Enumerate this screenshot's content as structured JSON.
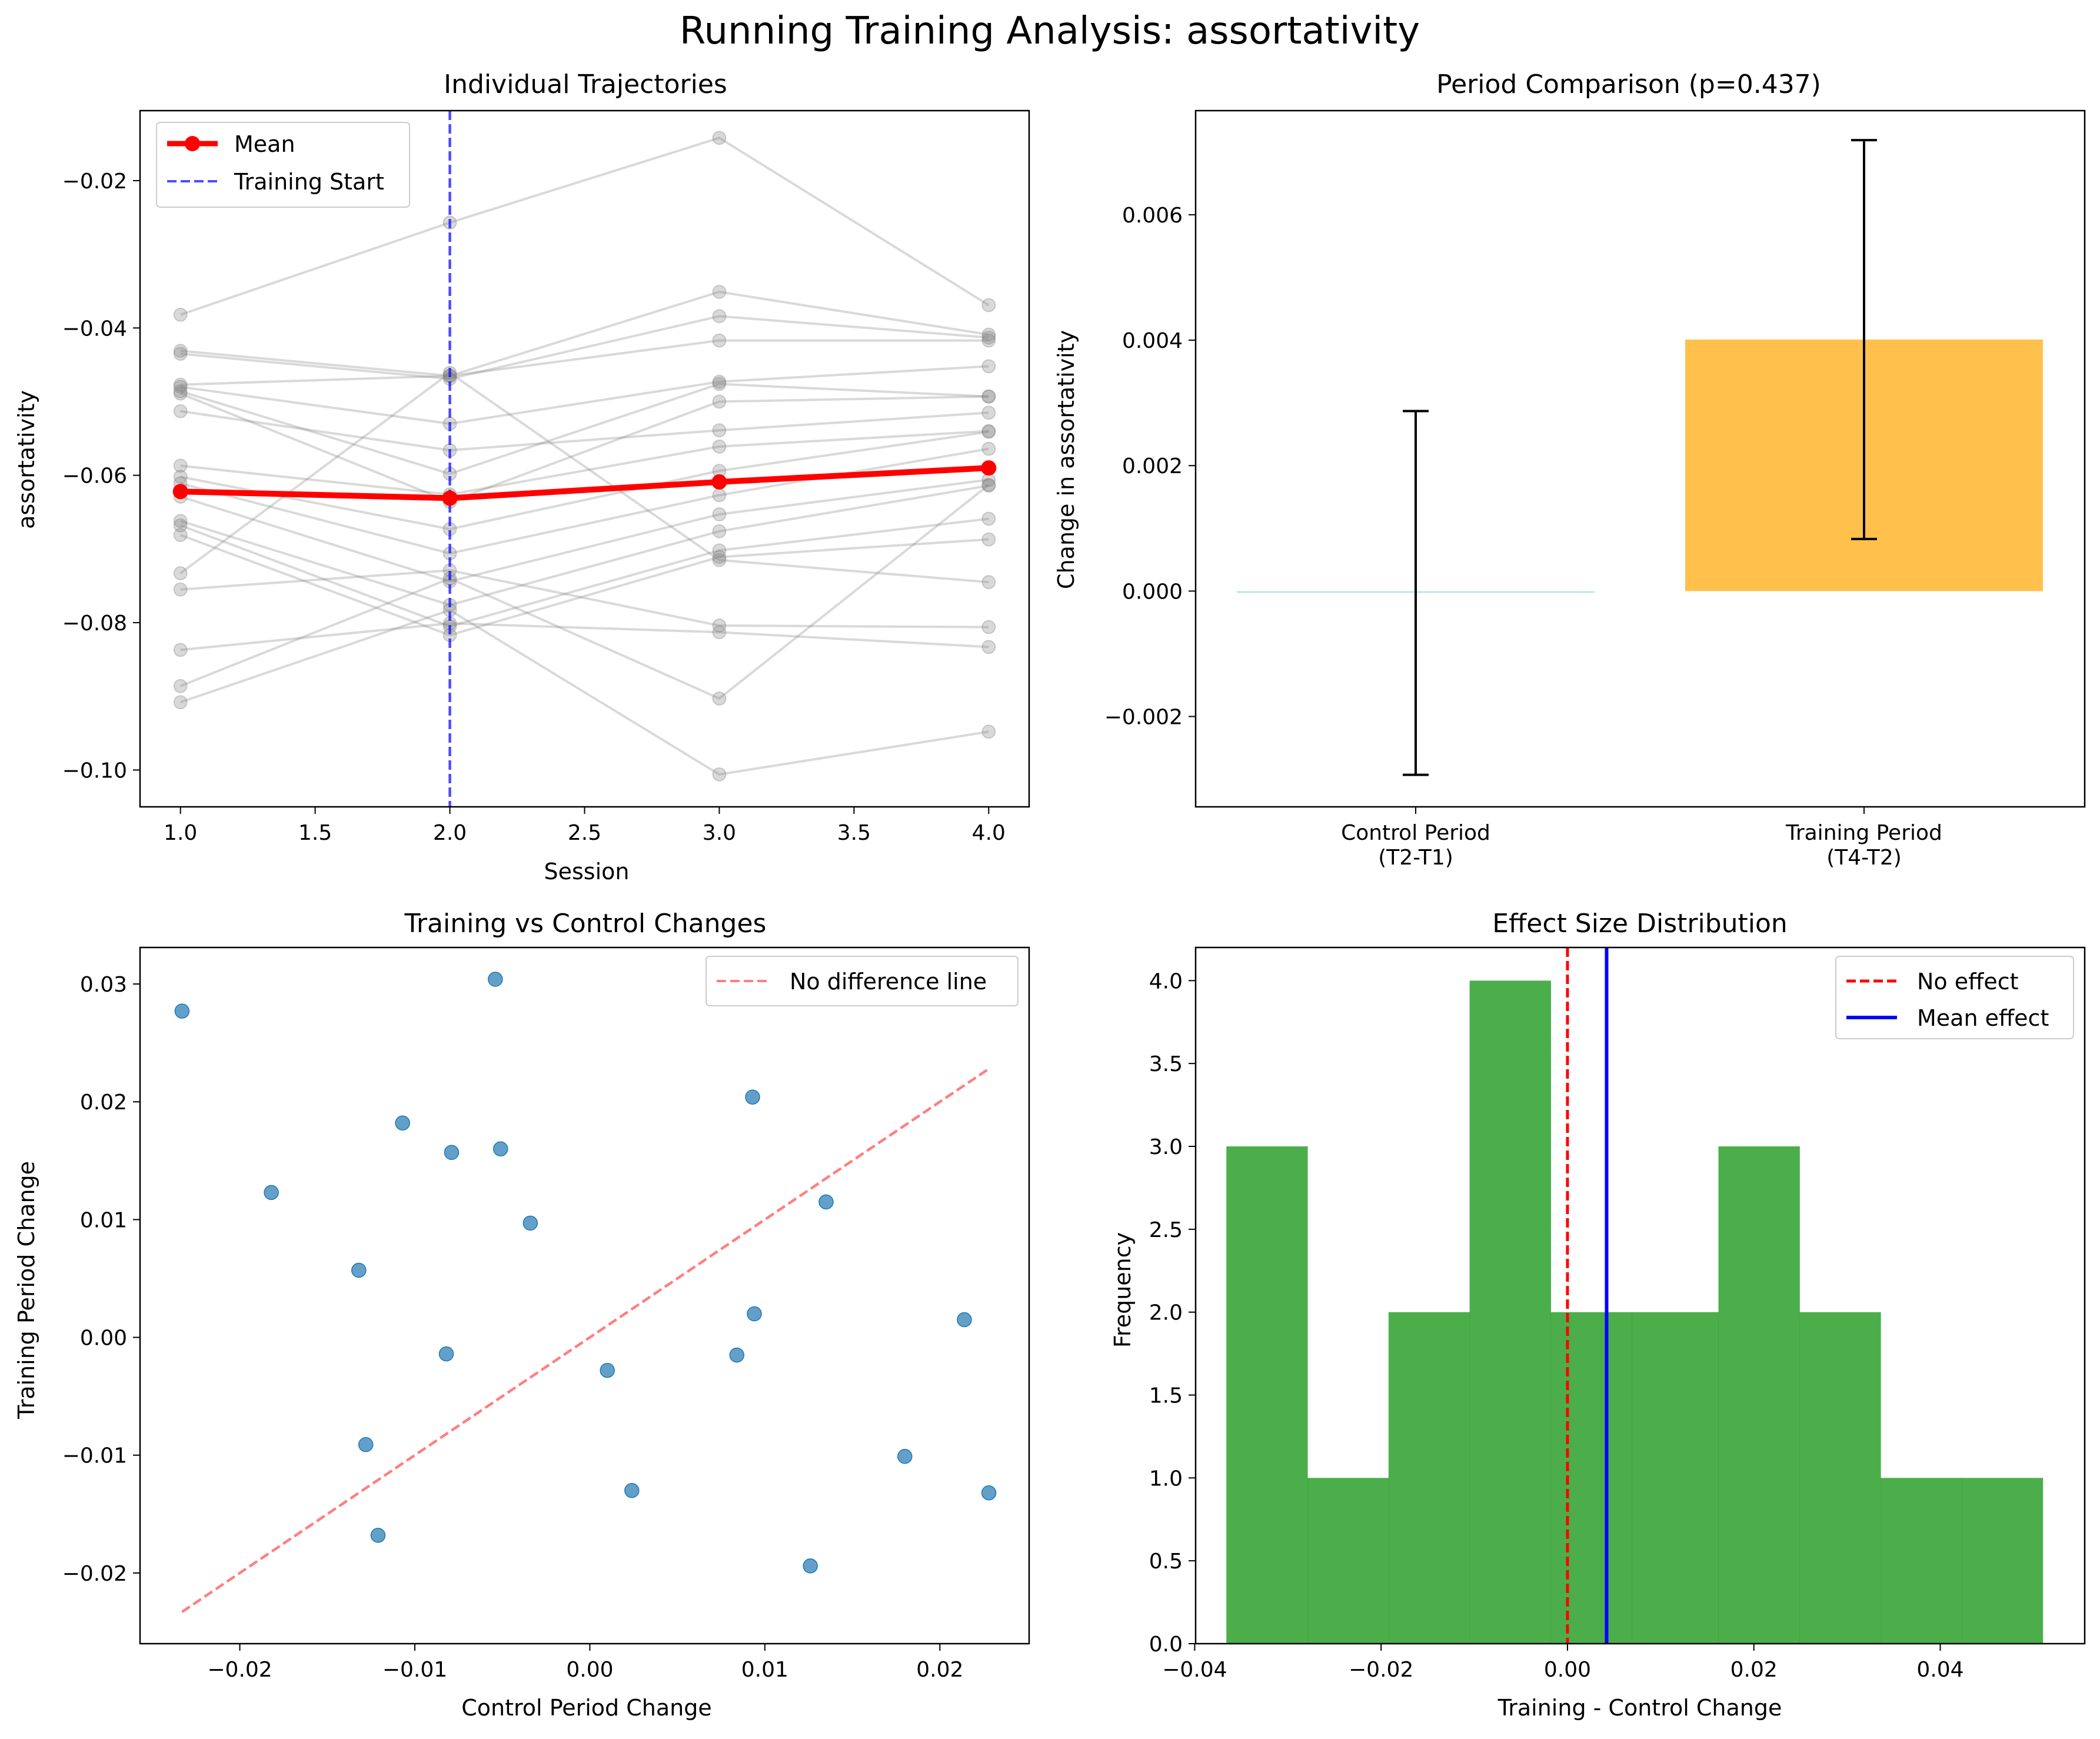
{
  "figure": {
    "suptitle": "Running Training Analysis: assortativity"
  },
  "chart_data": [
    {
      "type": "line",
      "title": "Individual Trajectories",
      "xlabel": "Session",
      "ylabel": "assortativity",
      "xlim": [
        0.85,
        4.15
      ],
      "ylim": [
        -0.105,
        -0.0105
      ],
      "xticks": [
        1.0,
        1.5,
        2.0,
        2.5,
        3.0,
        3.5,
        4.0
      ],
      "xtick_labels": [
        "1.0",
        "1.5",
        "2.0",
        "2.5",
        "3.0",
        "3.5",
        "4.0"
      ],
      "yticks": [
        -0.1,
        -0.08,
        -0.06,
        -0.04,
        -0.02
      ],
      "ytick_labels": [
        "−0.10",
        "−0.08",
        "−0.06",
        "−0.04",
        "−0.02"
      ],
      "x": [
        1,
        2,
        3,
        4
      ],
      "vline": {
        "x": 2.0,
        "name": "Training Start"
      },
      "legend": {
        "placement": "upper-left",
        "entries": [
          "Mean",
          "Training Start"
        ]
      },
      "individuals": [
        [
          -0.0382,
          -0.0257,
          -0.0142,
          -0.0369
        ],
        [
          -0.0431,
          -0.0465,
          -0.0351,
          -0.0409
        ],
        [
          -0.0435,
          -0.0469,
          -0.0384,
          -0.0413
        ],
        [
          -0.0477,
          -0.0465,
          -0.0417,
          -0.0417
        ],
        [
          -0.048,
          -0.053,
          -0.0473,
          -0.0452
        ],
        [
          -0.0486,
          -0.0598,
          -0.0476,
          -0.0493
        ],
        [
          -0.0489,
          -0.0636,
          -0.05,
          -0.0493
        ],
        [
          -0.0513,
          -0.0566,
          -0.0539,
          -0.0515
        ],
        [
          -0.0587,
          -0.0626,
          -0.0561,
          -0.054
        ],
        [
          -0.0602,
          -0.0673,
          -0.0594,
          -0.0541
        ],
        [
          -0.0611,
          -0.0706,
          -0.0627,
          -0.0564
        ],
        [
          -0.0629,
          -0.0744,
          -0.0653,
          -0.0606
        ],
        [
          -0.0662,
          -0.0776,
          -0.0676,
          -0.0614
        ],
        [
          -0.0668,
          -0.0805,
          -0.0702,
          -0.0659
        ],
        [
          -0.0681,
          -0.0817,
          -0.0711,
          -0.0687
        ],
        [
          -0.0733,
          -0.0461,
          -0.0715,
          -0.0745
        ],
        [
          -0.0755,
          -0.0729,
          -0.0804,
          -0.0806
        ],
        [
          -0.0837,
          -0.0801,
          -0.0813,
          -0.0833
        ],
        [
          -0.0886,
          -0.074,
          -0.0903,
          -0.0613
        ],
        [
          -0.0908,
          -0.0783,
          -0.1006,
          -0.0948
        ]
      ],
      "series": [
        {
          "name": "Mean",
          "values": [
            -0.0622,
            -0.0631,
            -0.0609,
            -0.059
          ]
        }
      ]
    },
    {
      "type": "bar",
      "title": "Period Comparison (p=0.437)",
      "ylabel": "Change in assortativity",
      "categories": [
        "Control Period\n(T2-T1)",
        "Training Period\n(T4-T2)"
      ],
      "values": [
        -3e-05,
        0.00401
      ],
      "errors": [
        0.0029,
        0.00318
      ],
      "colors": [
        "#add8e6",
        "#ffa500"
      ],
      "ylim": [
        -0.00344,
        0.00766
      ],
      "yticks": [
        -0.002,
        0.0,
        0.002,
        0.004,
        0.006
      ],
      "ytick_labels": [
        "−0.002",
        "0.000",
        "0.002",
        "0.004",
        "0.006"
      ]
    },
    {
      "type": "scatter",
      "title": "Training vs Control Changes",
      "xlabel": "Control Period Change",
      "ylabel": "Training Period Change",
      "xlim": [
        -0.0257,
        0.0251
      ],
      "ylim": [
        -0.026,
        0.0331
      ],
      "xticks": [
        -0.02,
        -0.01,
        0.0,
        0.01,
        0.02
      ],
      "xtick_labels": [
        "−0.02",
        "−0.01",
        "0.00",
        "0.01",
        "0.02"
      ],
      "yticks": [
        -0.02,
        -0.01,
        0.0,
        0.01,
        0.02,
        0.03
      ],
      "ytick_labels": [
        "−0.02",
        "−0.01",
        "0.00",
        "0.01",
        "0.02",
        "0.03"
      ],
      "points": [
        [
          -0.0233,
          0.0277
        ],
        [
          -0.0054,
          0.0304
        ],
        [
          0.0093,
          0.0204
        ],
        [
          -0.0107,
          0.0182
        ],
        [
          -0.0079,
          0.0157
        ],
        [
          -0.0051,
          0.016
        ],
        [
          -0.0182,
          0.0123
        ],
        [
          0.0135,
          0.0115
        ],
        [
          -0.0034,
          0.0097
        ],
        [
          -0.0132,
          0.0057
        ],
        [
          0.0094,
          0.002
        ],
        [
          0.0214,
          0.0015
        ],
        [
          -0.0082,
          -0.0014
        ],
        [
          0.0084,
          -0.0015
        ],
        [
          0.001,
          -0.0028
        ],
        [
          -0.0128,
          -0.0091
        ],
        [
          0.018,
          -0.0101
        ],
        [
          0.0024,
          -0.013
        ],
        [
          0.0228,
          -0.0132
        ],
        [
          -0.0121,
          -0.0168
        ],
        [
          0.0126,
          -0.0194
        ]
      ],
      "reference_line": {
        "name": "No difference line",
        "x": [
          -0.0233,
          0.0228
        ],
        "y": [
          -0.0233,
          0.0228
        ]
      },
      "legend": {
        "placement": "upper-right",
        "entries": [
          "No difference line"
        ]
      }
    },
    {
      "type": "bar",
      "subtype": "histogram",
      "title": "Effect Size Distribution",
      "xlabel": "Training - Control Change",
      "ylabel": "Frequency",
      "xlim": [
        -0.0399,
        0.0555
      ],
      "ylim": [
        0,
        4.2
      ],
      "xticks": [
        -0.04,
        -0.02,
        0.0,
        0.02,
        0.04
      ],
      "xtick_labels": [
        "−0.04",
        "−0.02",
        "0.00",
        "0.02",
        "0.04"
      ],
      "yticks": [
        0.0,
        0.5,
        1.0,
        1.5,
        2.0,
        2.5,
        3.0,
        3.5,
        4.0
      ],
      "ytick_labels": [
        "0.0",
        "0.5",
        "1.0",
        "1.5",
        "2.0",
        "2.5",
        "3.0",
        "3.5",
        "4.0"
      ],
      "bin_edges": [
        -0.0366,
        -0.0279,
        -0.0192,
        -0.0105,
        -0.0018,
        0.0069,
        0.0162,
        0.0249,
        0.0336,
        0.0423,
        0.051
      ],
      "counts": [
        3,
        1,
        2,
        4,
        2,
        2,
        3,
        2,
        1,
        1
      ],
      "color": "#2ca02c",
      "vlines": [
        {
          "name": "No effect",
          "x": 0.0,
          "color": "#ff0000",
          "dashed": true
        },
        {
          "name": "Mean effect",
          "x": 0.0042,
          "color": "#0000ff",
          "dashed": false
        }
      ],
      "legend": {
        "placement": "upper-right",
        "entries": [
          "No effect",
          "Mean effect"
        ]
      }
    }
  ]
}
